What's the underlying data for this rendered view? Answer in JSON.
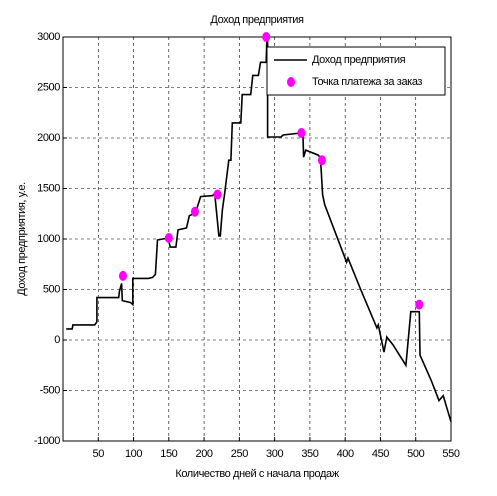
{
  "chart_data": {
    "type": "line",
    "title": "Доход предприятия",
    "x_label": "Количество дней с начала продаж",
    "y_label": "Доход предприятия, у.е.",
    "xlim": [
      0,
      550
    ],
    "ylim": [
      -1000,
      3000
    ],
    "xticks": [
      50,
      100,
      150,
      200,
      250,
      300,
      350,
      400,
      450,
      500,
      550
    ],
    "yticks": [
      -1000,
      -500,
      0,
      500,
      1000,
      1500,
      2000,
      2500,
      3000
    ],
    "grid": true,
    "legend": "upper right",
    "series": [
      {
        "name": "Доход предприятия",
        "type": "line",
        "color": "#000000",
        "x": [
          4.5,
          13,
          14,
          45,
          48,
          48,
          79,
          80,
          83,
          84,
          96,
          99,
          99,
          121,
          127,
          131,
          134,
          149,
          152,
          160,
          163,
          175,
          179,
          188,
          195,
          212,
          215,
          221,
          223,
          226,
          229,
          235,
          238,
          240,
          252,
          254,
          266,
          269,
          277,
          280,
          288,
          289,
          290,
          290,
          309,
          312,
          337,
          340,
          341,
          344,
          362,
          365,
          368,
          371,
          402,
          404,
          422,
          445,
          447,
          455,
          459,
          468,
          486,
          493,
          496,
          505,
          506,
          522,
          533,
          539,
          550
        ],
        "values": [
          110,
          110,
          150,
          150,
          180,
          420,
          420,
          480,
          560,
          390,
          370,
          350,
          610,
          610,
          620,
          650,
          990,
          1010,
          920,
          920,
          1090,
          1110,
          1230,
          1260,
          1420,
          1430,
          1450,
          1030,
          1030,
          1290,
          1440,
          1780,
          1780,
          2150,
          2150,
          2430,
          2430,
          2620,
          2620,
          2750,
          2750,
          3000,
          3000,
          2010,
          2010,
          2030,
          2050,
          2050,
          1810,
          1880,
          1830,
          1800,
          1440,
          1340,
          770,
          810,
          500,
          120,
          150,
          -120,
          30,
          -50,
          -250,
          280,
          280,
          280,
          -150,
          -400,
          -600,
          -550,
          -810
        ]
      },
      {
        "name": "Точка платежа за заказ",
        "type": "scatter",
        "color": "#ff00ff",
        "x": [
          85,
          150,
          187,
          219,
          288,
          338,
          367,
          505
        ],
        "values": [
          635,
          1010,
          1270,
          1440,
          3000,
          2050,
          1780,
          350
        ]
      }
    ]
  }
}
